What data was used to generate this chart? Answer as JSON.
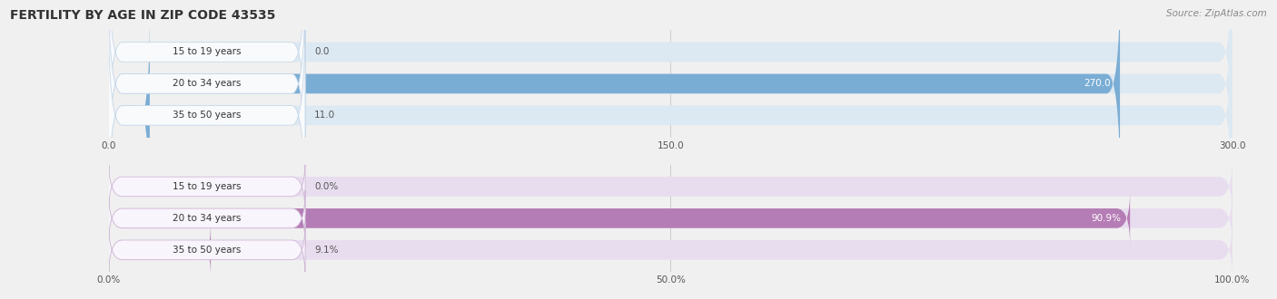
{
  "title": "FERTILITY BY AGE IN ZIP CODE 43535",
  "source": "Source: ZipAtlas.com",
  "top_chart": {
    "categories": [
      "15 to 19 years",
      "20 to 34 years",
      "35 to 50 years"
    ],
    "values": [
      0.0,
      270.0,
      11.0
    ],
    "xlim": [
      0,
      300
    ],
    "xticks": [
      0.0,
      150.0,
      300.0
    ],
    "xtick_labels": [
      "0.0",
      "150.0",
      "300.0"
    ],
    "bar_color": "#7aadd4",
    "bar_bg_color": "#dce8f2",
    "label_bg_color": "#f8fafc",
    "label_border_color": "#c8d8e8",
    "value_color": "#ffffff",
    "value_color_outside": "#555555"
  },
  "bottom_chart": {
    "categories": [
      "15 to 19 years",
      "20 to 34 years",
      "35 to 50 years"
    ],
    "values": [
      0.0,
      90.9,
      9.1
    ],
    "xlim": [
      0,
      100
    ],
    "xticks": [
      0.0,
      50.0,
      100.0
    ],
    "xtick_labels": [
      "0.0%",
      "50.0%",
      "100.0%"
    ],
    "bar_color": "#b57db5",
    "bar_bg_color": "#e8ddef",
    "label_bg_color": "#f8f5fc",
    "label_border_color": "#d0b8d8",
    "value_color": "#ffffff",
    "value_color_outside": "#555555"
  },
  "bg_color": "#f0f0f0",
  "grid_color": "#cccccc",
  "title_fontsize": 10,
  "source_fontsize": 7.5,
  "label_fontsize": 7.5,
  "value_fontsize": 7.5,
  "tick_fontsize": 7.5
}
